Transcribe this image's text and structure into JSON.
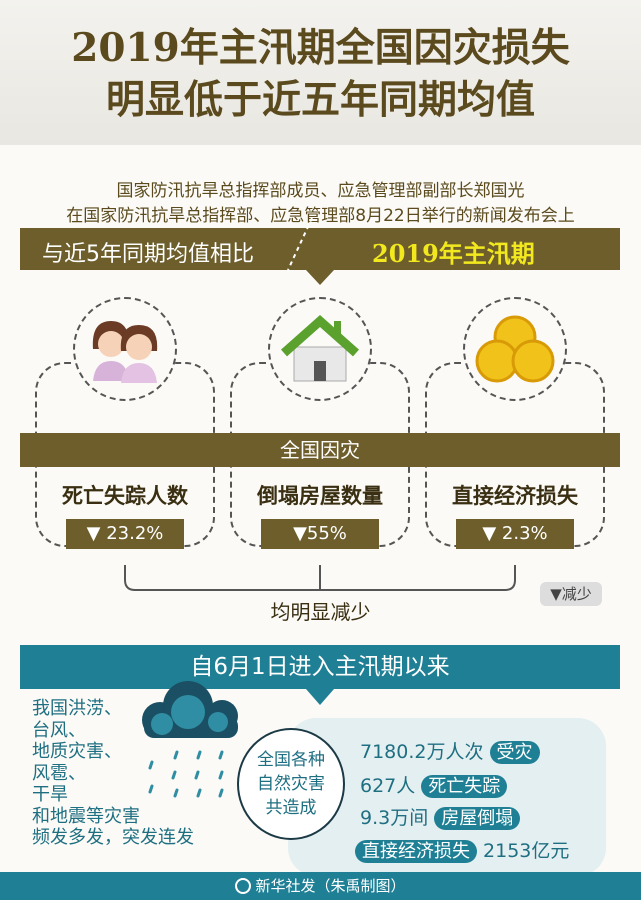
{
  "title": {
    "line1": "2019年主汛期全国因灾损失",
    "line2": "明显低于近五年同期均值"
  },
  "subtitle": {
    "line1": "国家防汛抗旱总指挥部成员、应急管理部副部长郑国光",
    "line2": "在国家防汛抗旱总指挥部、应急管理部8月22日举行的新闻发布会上"
  },
  "compare_band": {
    "left": "与近5年同期均值相比",
    "right": "2019年主汛期"
  },
  "national_band": "全国因灾",
  "metrics": [
    {
      "label": "死亡失踪人数",
      "value": "▼ 23.2%",
      "icon": "people-icon"
    },
    {
      "label": "倒塌房屋数量",
      "value": "▼55%",
      "icon": "house-icon"
    },
    {
      "label": "直接经济损失",
      "value": "▼ 2.3%",
      "icon": "coins-icon"
    }
  ],
  "summary": "均明显减少",
  "legend": "▼减少",
  "since_band": "自6月1日进入主汛期以来",
  "left_text": [
    "我国洪涝、",
    "台风、",
    "地质灾害、",
    "风雹、",
    "干旱",
    "和地震等灾害",
    "频发多发，突发连发"
  ],
  "circle_text": [
    "全国各种",
    "自然灾害",
    "共造成"
  ],
  "stats": [
    {
      "value": "7180.2万人次",
      "tag": "受灾"
    },
    {
      "value": "627人",
      "tag": "死亡失踪"
    },
    {
      "value": "9.3万间",
      "tag": "房屋倒塌"
    },
    {
      "tag": "直接经济损失",
      "value": "2153亿元"
    }
  ],
  "footer": "新华社发（朱禹制图）",
  "colors": {
    "olive": "#6d5e2c",
    "teal": "#1f8095",
    "yellow": "#f2e81e"
  }
}
